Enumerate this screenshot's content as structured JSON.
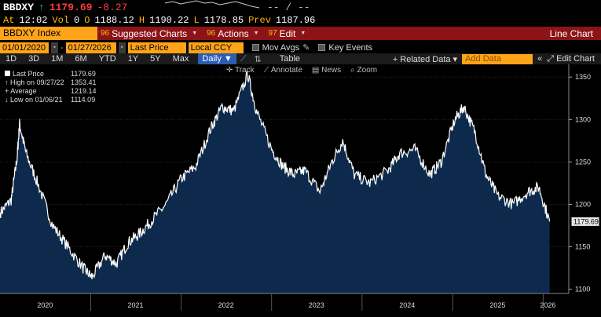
{
  "ticker": {
    "symbol": "BBDXY",
    "last": "1179.69",
    "change": "-8.27",
    "trailing": "-- / --"
  },
  "quote": {
    "at_label": "At",
    "time": "12:02",
    "vol_label": "Vol",
    "vol": "0",
    "open_label": "O",
    "open": "1188.12",
    "high_label": "H",
    "high": "1190.22",
    "low_label": "L",
    "low": "1178.85",
    "prev_label": "Prev",
    "prev": "1187.96"
  },
  "menubar": {
    "security": "BBDXY Index",
    "items": [
      {
        "num": "96",
        "label": "Suggested Charts"
      },
      {
        "num": "96",
        "label": "Actions"
      },
      {
        "num": "97",
        "label": "Edit"
      }
    ],
    "chart_type": "Line Chart"
  },
  "daterow": {
    "start": "01/01/2020",
    "end": "01/27/2026",
    "field": "Last Price",
    "currency": "Local CCY",
    "mov_avgs": "Mov Avgs",
    "key_events": "Key Events"
  },
  "periods": [
    "1D",
    "3D",
    "1M",
    "6M",
    "YTD",
    "1Y",
    "5Y",
    "Max"
  ],
  "periodrow": {
    "frequency": "Daily",
    "table": "Table",
    "related": "+ Related Data",
    "add_data": "Add Data",
    "edit_chart": "Edit Chart"
  },
  "chart_toolbar": [
    "Track",
    "Annotate",
    "News",
    "Zoom"
  ],
  "legend": [
    {
      "label": "Last Price",
      "value": "1179.69"
    },
    {
      "label": "High on 09/27/22",
      "value": "1353.41"
    },
    {
      "label": "Average",
      "value": "1219.14"
    },
    {
      "label": "Low on 01/06/21",
      "value": "1114.09"
    }
  ],
  "price_label": "1179.69",
  "colors": {
    "accent_orange": "#ffa319",
    "menu_red": "#8c1418",
    "area_fill": "#0d2a4d",
    "line": "#ffffff",
    "up": "#1fd46a",
    "down": "#ff3b3b"
  },
  "chart_data": {
    "type": "area",
    "x": [
      "2020-01-01",
      "2020-02-15",
      "2020-03-10",
      "2020-03-20",
      "2020-04-15",
      "2020-06-01",
      "2020-08-01",
      "2020-10-01",
      "2020-12-01",
      "2021-01-06",
      "2021-03-01",
      "2021-04-15",
      "2021-06-01",
      "2021-07-15",
      "2021-09-01",
      "2021-11-01",
      "2022-01-01",
      "2022-03-01",
      "2022-05-01",
      "2022-06-15",
      "2022-08-01",
      "2022-09-27",
      "2022-11-01",
      "2023-01-01",
      "2023-02-15",
      "2023-04-01",
      "2023-05-15",
      "2023-07-15",
      "2023-09-01",
      "2023-10-15",
      "2023-12-01",
      "2024-02-01",
      "2024-04-15",
      "2024-06-01",
      "2024-08-01",
      "2024-10-01",
      "2024-11-15",
      "2025-01-10",
      "2025-02-15",
      "2025-04-01",
      "2025-05-15",
      "2025-07-01",
      "2025-09-01",
      "2025-11-01",
      "2025-12-15",
      "2026-01-27"
    ],
    "y": [
      1190,
      1205,
      1255,
      1295,
      1260,
      1225,
      1175,
      1150,
      1125,
      1114,
      1140,
      1130,
      1155,
      1165,
      1180,
      1200,
      1230,
      1245,
      1290,
      1315,
      1310,
      1353,
      1310,
      1265,
      1245,
      1235,
      1240,
      1215,
      1250,
      1275,
      1235,
      1225,
      1240,
      1260,
      1265,
      1235,
      1250,
      1300,
      1315,
      1285,
      1235,
      1210,
      1200,
      1215,
      1220,
      1179.69
    ],
    "ylim": [
      1095,
      1365
    ],
    "yticks": [
      1100,
      1150,
      1200,
      1250,
      1300,
      1350
    ],
    "xtick_labels": [
      "2020",
      "2021",
      "2022",
      "2023",
      "2024",
      "2025",
      "2026"
    ],
    "grid": true
  }
}
